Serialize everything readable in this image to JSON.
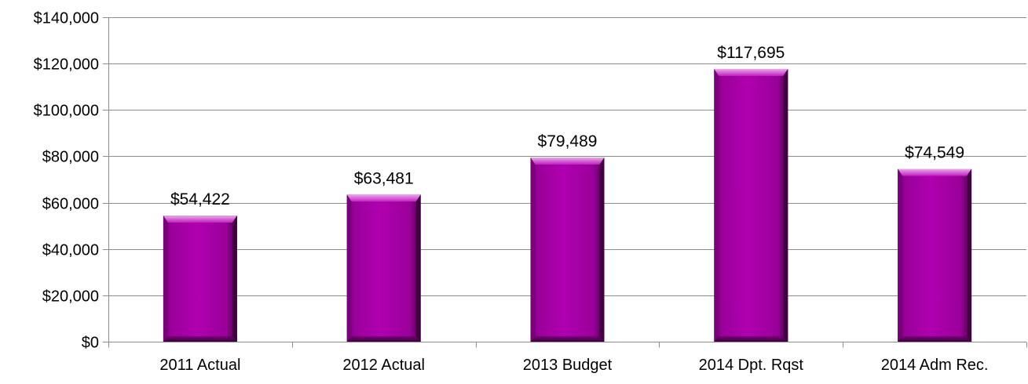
{
  "chart_data": {
    "type": "bar",
    "categories": [
      "2011 Actual",
      "2012 Actual",
      "2013 Budget",
      "2014 Dpt. Rqst",
      "2014 Adm Rec."
    ],
    "values": [
      54422,
      63481,
      79489,
      117695,
      74549
    ],
    "data_labels": [
      "$54,422",
      "$63,481",
      "$79,489",
      "$117,695",
      "$74,549"
    ],
    "ylim": [
      0,
      140000
    ],
    "yticks": [
      0,
      20000,
      40000,
      60000,
      80000,
      100000,
      120000,
      140000
    ],
    "ytick_labels": [
      "$0",
      "$20,000",
      "$40,000",
      "$60,000",
      "$80,000",
      "$100,000",
      "$120,000",
      "$140,000"
    ],
    "grid": true,
    "title": "",
    "xlabel": "",
    "ylabel": "",
    "colors": {
      "bar": "#a000a0",
      "bar_dark": "#5a005a",
      "bar_light": "#e27ae2",
      "grid": "#8c8c8c",
      "axis": "#8c8c8c"
    }
  }
}
